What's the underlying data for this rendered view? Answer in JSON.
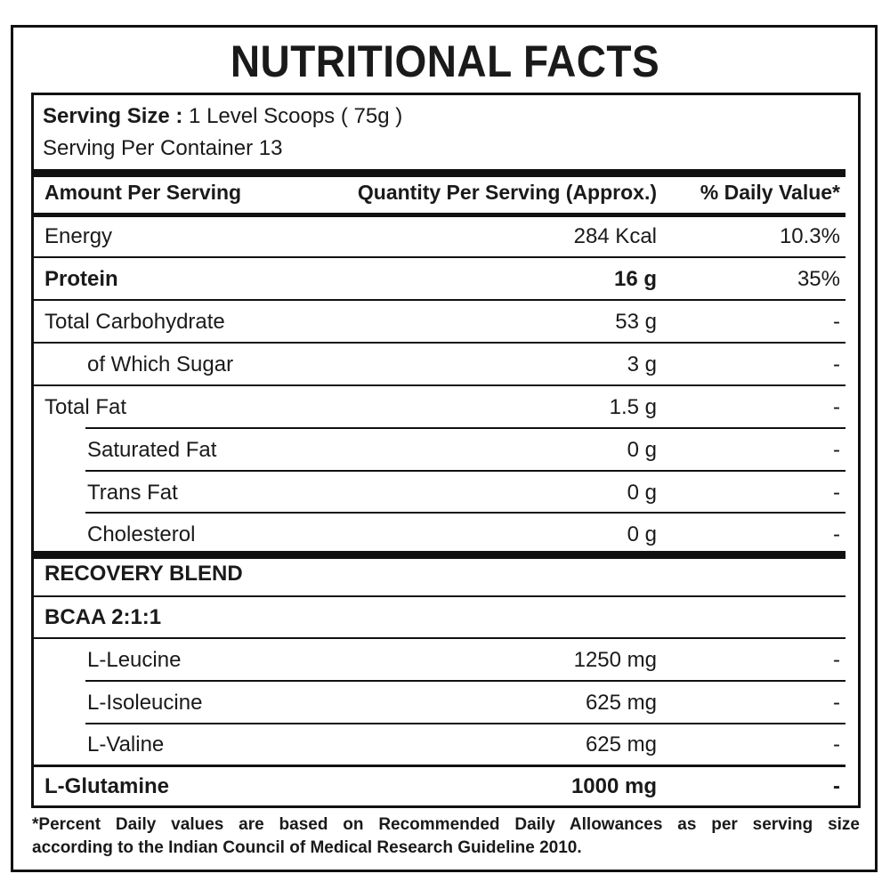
{
  "title": "NUTRITIONAL FACTS",
  "serving": {
    "size_label": "Serving Size :",
    "size_value": " 1 Level Scoops ( 75g )",
    "per_container": "Serving Per Container 13"
  },
  "header": {
    "amount": "Amount Per Serving",
    "quantity": "Quantity Per Serving (Approx.)",
    "daily_value": "% Daily Value*"
  },
  "rows": [
    {
      "name": "Energy",
      "qty": "284 Kcal",
      "dv": "10.3%"
    },
    {
      "name": "Protein",
      "qty": "16 g",
      "dv": "35%"
    },
    {
      "name": "Total Carbohydrate",
      "qty": "53 g",
      "dv": "-"
    },
    {
      "name": "of Which Sugar",
      "qty": "3 g",
      "dv": "-"
    },
    {
      "name": "Total Fat",
      "qty": "1.5 g",
      "dv": "-"
    },
    {
      "name": "Saturated Fat",
      "qty": "0 g",
      "dv": "-"
    },
    {
      "name": "Trans Fat",
      "qty": "0 g",
      "dv": "-"
    },
    {
      "name": "Cholesterol",
      "qty": "0 g",
      "dv": "-"
    }
  ],
  "blend": {
    "title": "RECOVERY BLEND",
    "bcaa": "BCAA 2:1:1",
    "rows": [
      {
        "name": "L-Leucine",
        "qty": "1250 mg",
        "dv": "-"
      },
      {
        "name": "L-Isoleucine",
        "qty": "625 mg",
        "dv": "-"
      },
      {
        "name": "L-Valine",
        "qty": "625 mg",
        "dv": "-"
      },
      {
        "name": "L-Glutamine",
        "qty": "1000 mg",
        "dv": "-"
      }
    ]
  },
  "footnote": {
    "line1": "*Percent Daily values are based on Recommended Daily Allowances as per serving size",
    "line2": "according to the Indian Council of Medical Research Guideline 2010."
  }
}
